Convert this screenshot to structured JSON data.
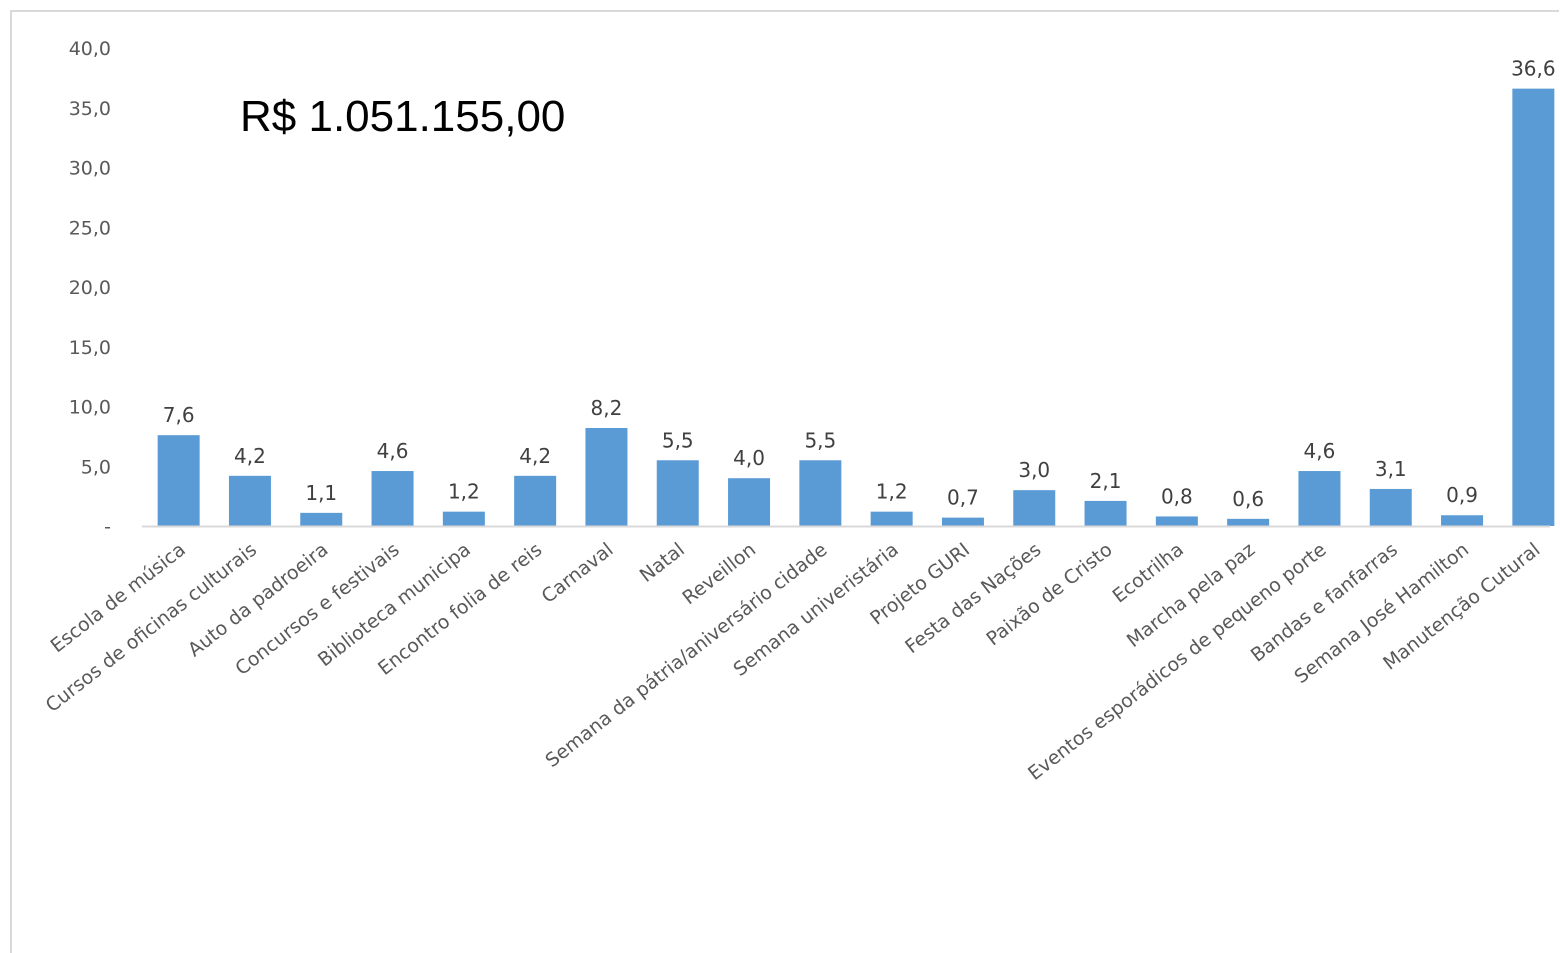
{
  "chart_data": {
    "type": "bar",
    "categories": [
      "Escola de música",
      "Cursos de oficinas culturais",
      "Auto da padroeira",
      "Concursos e festivais",
      "Biblioteca municipa",
      "Encontro folia de reis",
      "Carnaval",
      "Natal",
      "Reveillon",
      "Semana da pátria/aniversário cidade",
      "Semana univeristária",
      "Projeto GURI",
      "Festa das Nações",
      "Paixão de Cristo",
      "Ecotrilha",
      "Marcha pela paz",
      "Eventos esporádicos de pequeno porte",
      "Bandas e fanfarras",
      "Semana José Hamilton",
      "Manutenção Cutural"
    ],
    "values": [
      7.6,
      4.2,
      1.1,
      4.6,
      1.2,
      4.2,
      8.2,
      5.5,
      4.0,
      5.5,
      1.2,
      0.7,
      3.0,
      2.1,
      0.8,
      0.6,
      4.6,
      3.1,
      0.9,
      36.6
    ],
    "data_labels": [
      "7,6",
      "4,2",
      "1,1",
      "4,6",
      "1,2",
      "4,2",
      "8,2",
      "5,5",
      "4,0",
      "5,5",
      "1,2",
      "0,7",
      "3,0",
      "2,1",
      "0,8",
      "0,6",
      "4,6",
      "3,1",
      "0,9",
      "36,6"
    ],
    "yticks": [
      0,
      5,
      10,
      15,
      20,
      25,
      30,
      35,
      40
    ],
    "ytick_labels": [
      "-",
      "5,0",
      "10,0",
      "15,0",
      "20,0",
      "25,0",
      "30,0",
      "35,0",
      "40,0"
    ],
    "ylim": [
      0,
      40
    ],
    "annotation": "R$ 1.051.155,00",
    "title": "",
    "xlabel": "",
    "ylabel": "",
    "grid": false,
    "legend": "none",
    "bar_color": "#5b9bd5",
    "axis_color": "#d9d9d9"
  }
}
